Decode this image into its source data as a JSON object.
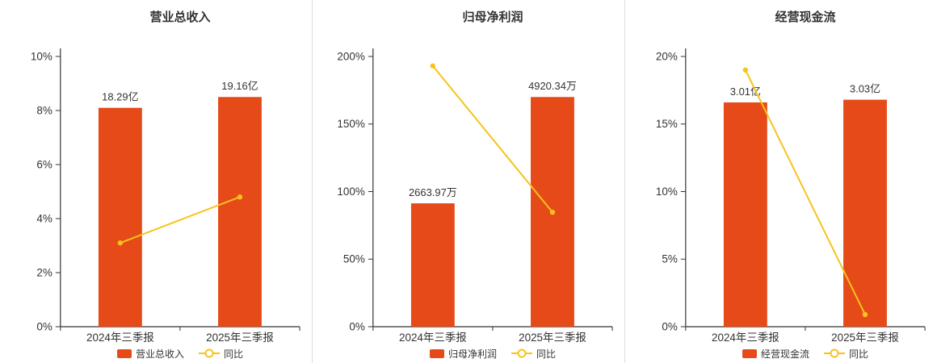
{
  "colors": {
    "bar": "#e64a19",
    "line": "#f6c41c",
    "axis": "#333333",
    "text": "#333333",
    "divider": "#dddddd",
    "bg": "#ffffff"
  },
  "chart_data": [
    {
      "type": "bar",
      "title": "营业总收入",
      "categories": [
        "2024年三季报",
        "2025年三季报"
      ],
      "bar_series": {
        "name": "营业总收入",
        "value_labels": [
          "18.29亿",
          "19.16亿"
        ],
        "axis_heights_pct": [
          8.1,
          8.5
        ]
      },
      "line_series": {
        "name": "同比",
        "values_pct": [
          3.1,
          4.8
        ]
      },
      "ylim": [
        0,
        10
      ],
      "yticks": [
        0,
        2,
        4,
        6,
        8,
        10
      ],
      "ytick_suffix": "%",
      "grid": false,
      "legend_position": "bottom"
    },
    {
      "type": "bar",
      "title": "归母净利润",
      "categories": [
        "2024年三季报",
        "2025年三季报"
      ],
      "bar_series": {
        "name": "归母净利润",
        "value_labels": [
          "2663.97万",
          "4920.34万"
        ],
        "axis_heights_pct": [
          91.3,
          170
        ]
      },
      "line_series": {
        "name": "同比",
        "values_pct": [
          193,
          84.7
        ]
      },
      "ylim": [
        0,
        200
      ],
      "yticks": [
        0,
        50,
        100,
        150,
        200
      ],
      "ytick_suffix": "%",
      "grid": false,
      "legend_position": "bottom"
    },
    {
      "type": "bar",
      "title": "经营现金流",
      "categories": [
        "2024年三季报",
        "2025年三季报"
      ],
      "bar_series": {
        "name": "经营现金流",
        "value_labels": [
          "3.01亿",
          "3.03亿"
        ],
        "axis_heights_pct": [
          16.6,
          16.8
        ]
      },
      "line_series": {
        "name": "同比",
        "values_pct": [
          19.0,
          0.9
        ]
      },
      "ylim": [
        0,
        20
      ],
      "yticks": [
        0,
        5,
        10,
        15,
        20
      ],
      "ytick_suffix": "%",
      "grid": false,
      "legend_position": "bottom"
    }
  ]
}
